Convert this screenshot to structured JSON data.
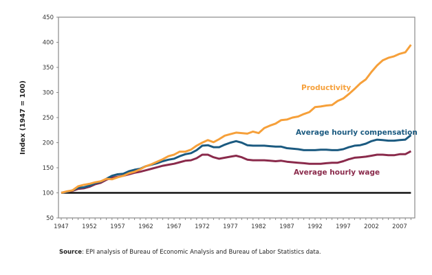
{
  "chart_data": {
    "type": "line",
    "ylabel": "Index (1947 = 100)",
    "xlabel": "",
    "ylim": [
      50,
      450
    ],
    "yticks": [
      50,
      100,
      150,
      200,
      250,
      300,
      350,
      400,
      450
    ],
    "xlim": [
      1947,
      2009
    ],
    "xticks": [
      1947,
      1952,
      1957,
      1962,
      1967,
      1972,
      1977,
      1982,
      1987,
      1992,
      1997,
      2002,
      2007
    ],
    "grid": false,
    "reference_line": 100,
    "x": [
      1947,
      1948,
      1949,
      1950,
      1951,
      1952,
      1953,
      1954,
      1955,
      1956,
      1957,
      1958,
      1959,
      1960,
      1961,
      1962,
      1963,
      1964,
      1965,
      1966,
      1967,
      1968,
      1969,
      1970,
      1971,
      1972,
      1973,
      1974,
      1975,
      1976,
      1977,
      1978,
      1979,
      1980,
      1981,
      1982,
      1983,
      1984,
      1985,
      1986,
      1987,
      1988,
      1989,
      1990,
      1991,
      1992,
      1993,
      1994,
      1995,
      1996,
      1997,
      1998,
      1999,
      2000,
      2001,
      2002,
      2003,
      2004,
      2005,
      2006,
      2007,
      2008,
      2009
    ],
    "series": [
      {
        "name": "Productivity",
        "color": "#f6a03a",
        "values": [
          100,
          103,
          105,
          113,
          116,
          118,
          121,
          123,
          128,
          127,
          131,
          134,
          139,
          142,
          147,
          153,
          157,
          162,
          167,
          173,
          176,
          182,
          182,
          186,
          194,
          200,
          205,
          201,
          207,
          214,
          217,
          220,
          219,
          218,
          222,
          219,
          229,
          234,
          238,
          245,
          246,
          250,
          252,
          257,
          261,
          271,
          272,
          274,
          275,
          283,
          288,
          297,
          307,
          318,
          326,
          341,
          354,
          364,
          369,
          372,
          377,
          380,
          395
        ]
      },
      {
        "name": "Average hourly compensation",
        "color": "#1b5a80",
        "values": [
          100,
          102,
          105,
          110,
          111,
          114,
          119,
          122,
          128,
          134,
          137,
          138,
          143,
          146,
          148,
          153,
          156,
          159,
          163,
          166,
          168,
          173,
          177,
          179,
          185,
          194,
          195,
          191,
          191,
          196,
          200,
          203,
          200,
          195,
          194,
          194,
          194,
          193,
          192,
          192,
          189,
          188,
          187,
          185,
          185,
          185,
          186,
          186,
          185,
          185,
          187,
          191,
          194,
          195,
          198,
          203,
          206,
          205,
          204,
          204,
          205,
          206,
          215
        ]
      },
      {
        "name": "Average hourly wage",
        "color": "#8a2a4b",
        "values": [
          100,
          102,
          104,
          108,
          109,
          112,
          117,
          120,
          126,
          130,
          132,
          134,
          137,
          140,
          142,
          145,
          148,
          151,
          154,
          156,
          158,
          161,
          164,
          165,
          169,
          176,
          176,
          171,
          168,
          170,
          172,
          174,
          171,
          166,
          165,
          165,
          165,
          164,
          163,
          164,
          162,
          161,
          160,
          159,
          158,
          158,
          158,
          159,
          160,
          160,
          163,
          167,
          170,
          171,
          172,
          174,
          176,
          176,
          175,
          175,
          177,
          177,
          183
        ]
      }
    ]
  },
  "source": {
    "label": "Source",
    "text": ": EPI analysis of Bureau of Economic Analysis and Bureau of Labor Statistics data."
  }
}
